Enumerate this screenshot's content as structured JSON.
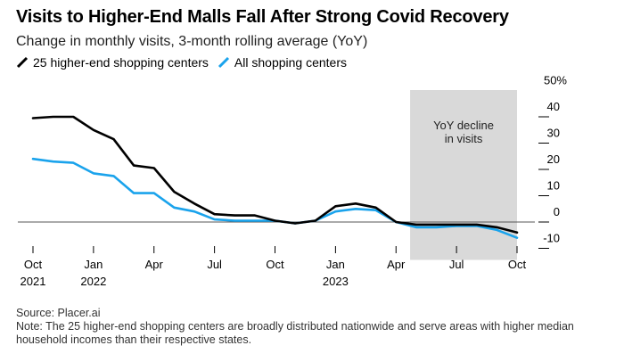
{
  "chart_data": {
    "type": "line",
    "title": "Visits to Higher-End Malls Fall After Strong Covid Recovery",
    "subtitle": "Change in monthly visits, 3-month rolling average (YoY)",
    "ylabel": "",
    "ylim": [
      -10,
      50
    ],
    "yticks": [
      -10,
      0,
      10,
      20,
      30,
      40
    ],
    "ytick_labels": [
      "-10",
      "0",
      "10",
      "20",
      "30",
      "40"
    ],
    "ytop_label": "50%",
    "xticks": [
      0,
      3,
      6,
      9,
      12,
      15,
      18,
      21,
      24
    ],
    "xtick_labels": [
      [
        "Oct",
        "2021"
      ],
      [
        "Jan",
        "2022"
      ],
      [
        "Apr",
        ""
      ],
      [
        "Jul",
        ""
      ],
      [
        "Oct",
        ""
      ],
      [
        "Jan",
        "2023"
      ],
      [
        "Apr",
        ""
      ],
      [
        "Jul",
        ""
      ],
      [
        "Oct",
        ""
      ]
    ],
    "x": [
      0,
      1,
      2,
      3,
      4,
      5,
      6,
      7,
      8,
      9,
      10,
      11,
      12,
      13,
      14,
      15,
      16,
      17,
      18,
      19,
      20,
      21,
      22,
      23,
      24
    ],
    "series": [
      {
        "name": "25 higher-end shopping centers",
        "color": "#000000",
        "values": [
          39.5,
          40,
          40,
          35,
          31.5,
          21.5,
          20.5,
          11.5,
          7,
          3,
          2.5,
          2.5,
          0.5,
          -0.5,
          0.5,
          6,
          7,
          5.5,
          0,
          -1,
          -1,
          -1,
          -1,
          -2,
          -4
        ]
      },
      {
        "name": "All shopping centers",
        "color": "#1aa3ec",
        "values": [
          24,
          23,
          22.5,
          18.5,
          17.5,
          11,
          11,
          5.5,
          4,
          1,
          0.5,
          0.5,
          0.5,
          -0.5,
          0.5,
          4,
          5,
          4.5,
          0,
          -2,
          -2,
          -1.5,
          -1.5,
          -3,
          -6
        ]
      }
    ],
    "shaded_region": {
      "x_start": 18.7,
      "x_end": 24,
      "label": [
        "YoY decline",
        "in visits"
      ],
      "color": "#d9d9d9"
    }
  },
  "footer": {
    "source": "Source: Placer.ai",
    "note": "Note: The 25 higher-end shopping centers are broadly distributed nationwide and serve areas with higher median household incomes than their respective states."
  }
}
